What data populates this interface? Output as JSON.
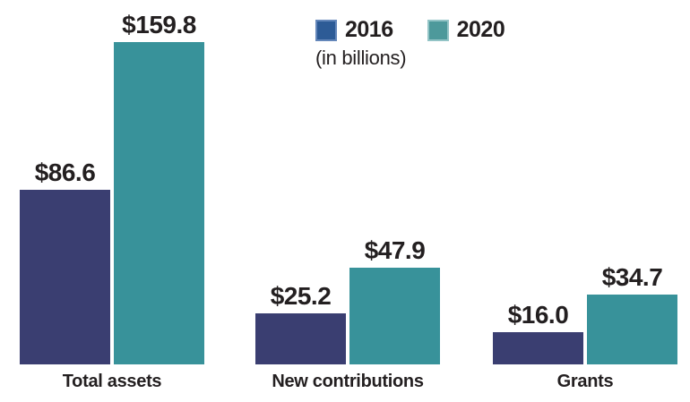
{
  "chart_data": {
    "type": "bar",
    "title": "",
    "unit_note": "(in billions)",
    "categories": [
      "Total assets",
      "New contributions",
      "Grants"
    ],
    "series": [
      {
        "name": "2016",
        "color": "#3a3e71",
        "legend_color": "#2d5b96",
        "legend_border": "#6487ba",
        "values": [
          86.6,
          25.2,
          16.0
        ],
        "labels": [
          "$86.6",
          "$25.2",
          "$16.0"
        ]
      },
      {
        "name": "2020",
        "color": "#38929a",
        "legend_color": "#4d999b",
        "legend_border": "#93c4c6",
        "values": [
          159.8,
          47.9,
          34.7
        ],
        "labels": [
          "$159.8",
          "$47.9",
          "$34.7"
        ]
      }
    ],
    "legend_position": "top-center",
    "grid": false,
    "axes_hidden": true,
    "value_axis_range": [
      0,
      165
    ],
    "value_prefix": "$"
  },
  "colors": {
    "text": "#231f20",
    "background": "#ffffff"
  }
}
